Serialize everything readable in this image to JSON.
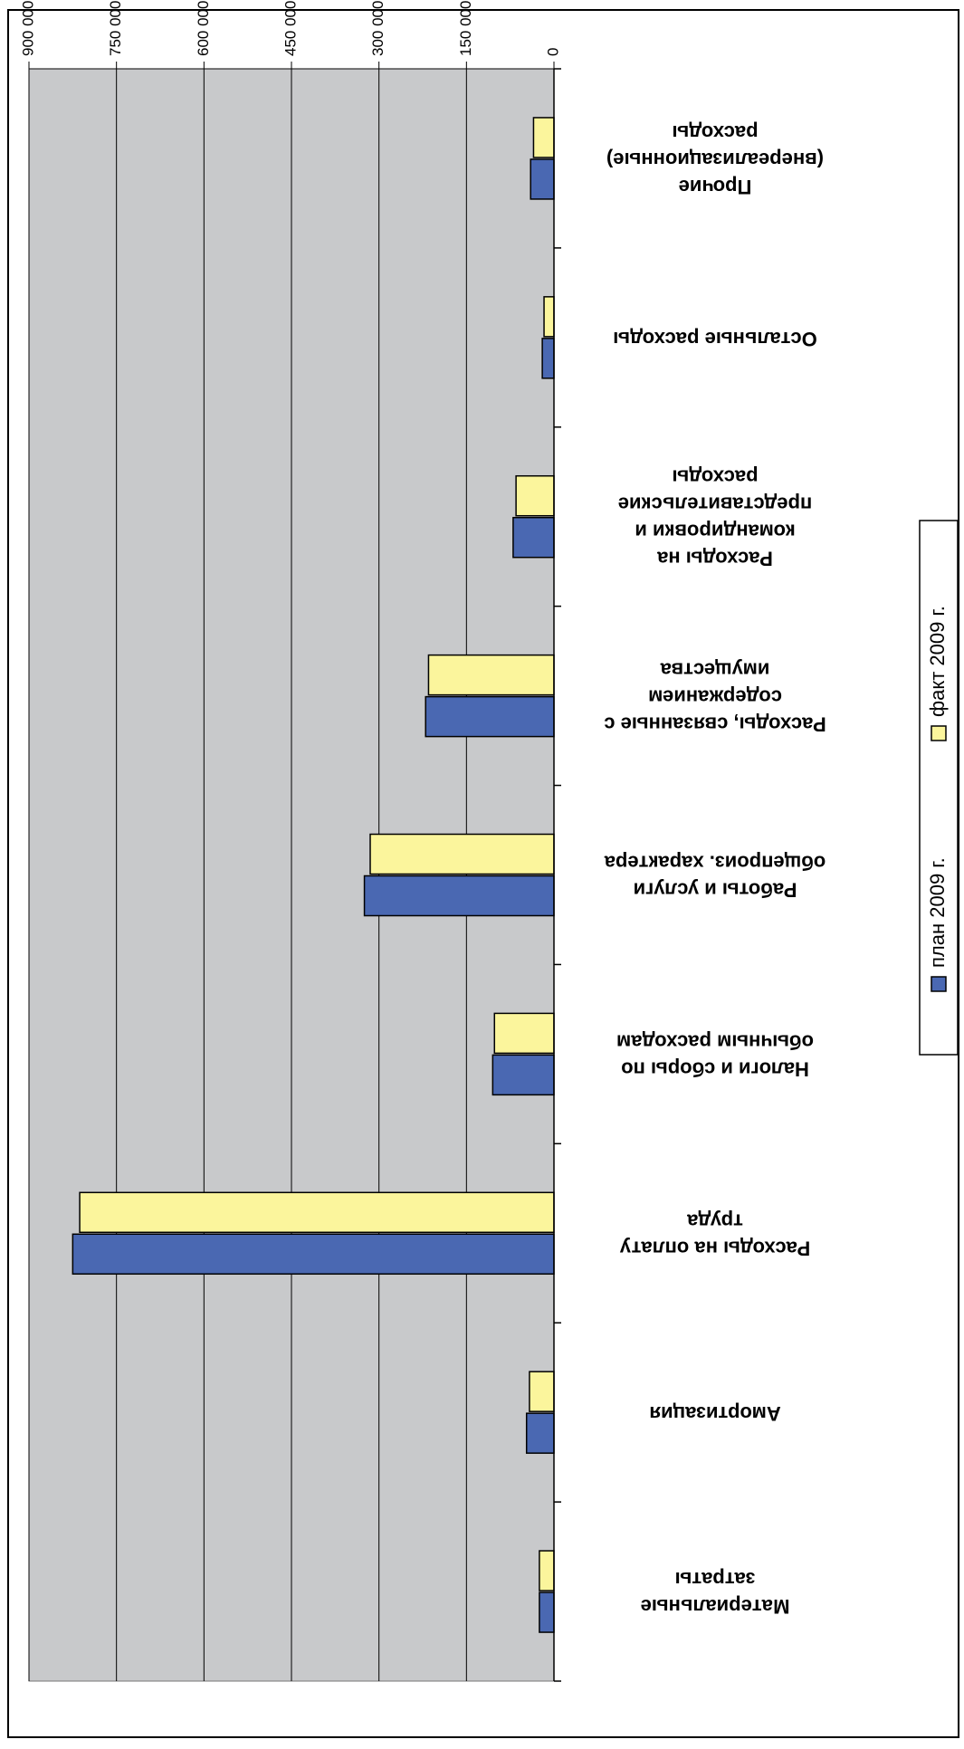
{
  "chart_data": {
    "type": "bar",
    "orientation": "horizontal",
    "rotation": "180deg",
    "categories": [
      [
        "Материальные",
        "затраты"
      ],
      [
        "Амортизация"
      ],
      [
        "Расходы на оплату",
        "труда"
      ],
      [
        "Налоги и сборы по",
        "обычным расходам"
      ],
      [
        "Работы и услуги",
        "общепроиз. характера"
      ],
      [
        "Расходы, связанные с",
        "содержанием",
        "имущества"
      ],
      [
        "Расходы на",
        "командировки и",
        "представительские",
        "расходы"
      ],
      [
        "Остальные расходы"
      ],
      [
        "Прочие",
        "(внереализационные)",
        "расходы"
      ]
    ],
    "series": [
      {
        "name": "план 2009 г.",
        "color": "#4a68b2",
        "values": [
          25000,
          47000,
          825000,
          105000,
          325000,
          220000,
          70000,
          20000,
          40000
        ]
      },
      {
        "name": "факт 2009 г.",
        "color": "#fbf59c",
        "values": [
          25000,
          42000,
          813000,
          102000,
          315000,
          215000,
          65000,
          17000,
          35000
        ]
      }
    ],
    "xlim": [
      0,
      900000
    ],
    "ticks": [
      "0",
      "150 000",
      "300 000",
      "450 000",
      "600 000",
      "750 000",
      "900 000"
    ],
    "tick_values": [
      0,
      150000,
      300000,
      450000,
      600000,
      750000,
      900000
    ],
    "plot_background": "#c8c9cb",
    "grid": true,
    "legend_position": "left"
  }
}
